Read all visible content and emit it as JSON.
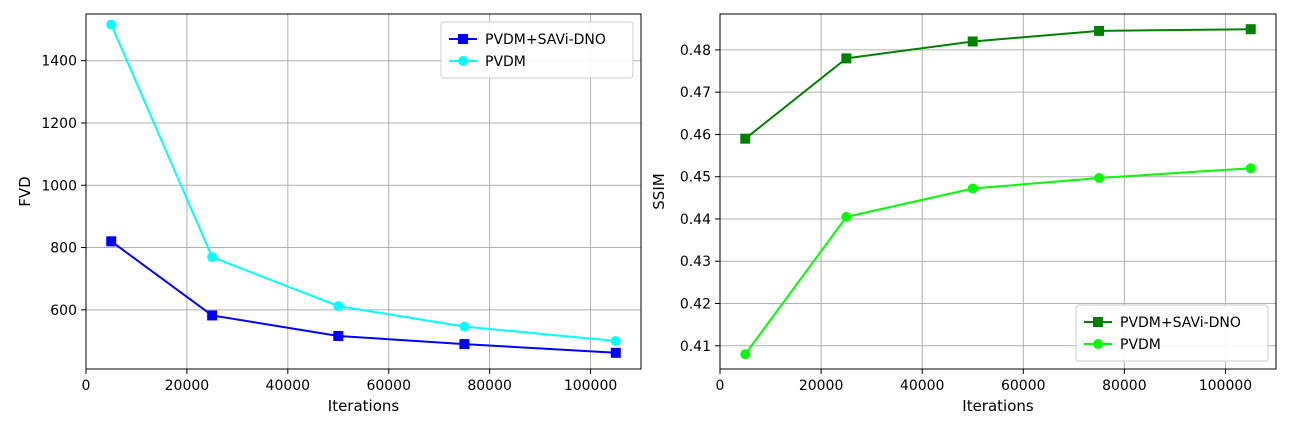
{
  "chart_data": [
    {
      "type": "line",
      "xlabel": "Iterations",
      "ylabel": "FVD",
      "xlim": [
        0,
        110000
      ],
      "ylim": [
        410,
        1550
      ],
      "x_ticks": [
        0,
        20000,
        40000,
        60000,
        80000,
        100000
      ],
      "y_ticks": [
        600,
        800,
        1000,
        1200,
        1400
      ],
      "grid": true,
      "legend_position": "top-right",
      "series": [
        {
          "name": "PVDM+SAVi-DNO",
          "color": "#0000ff",
          "marker": "square",
          "x": [
            5000,
            25000,
            50000,
            75000,
            105000
          ],
          "y": [
            820,
            582,
            516,
            490,
            462
          ]
        },
        {
          "name": "PVDM",
          "color": "#00ffff",
          "marker": "circle",
          "x": [
            5000,
            25000,
            50000,
            75000,
            105000
          ],
          "y": [
            1516,
            769,
            612,
            546,
            500
          ]
        }
      ]
    },
    {
      "type": "line",
      "xlabel": "Iterations",
      "ylabel": "SSIM",
      "xlim": [
        0,
        110000
      ],
      "ylim": [
        0.4045,
        0.4885
      ],
      "x_ticks": [
        0,
        20000,
        40000,
        60000,
        80000,
        100000
      ],
      "y_ticks": [
        0.41,
        0.42,
        0.43,
        0.44,
        0.45,
        0.46,
        0.47,
        0.48
      ],
      "grid": true,
      "legend_position": "bottom-right",
      "series": [
        {
          "name": "PVDM+SAVi-DNO",
          "color": "#008000",
          "marker": "square",
          "x": [
            5000,
            25000,
            50000,
            75000,
            105000
          ],
          "y": [
            0.459,
            0.478,
            0.482,
            0.4845,
            0.4849
          ]
        },
        {
          "name": "PVDM",
          "color": "#00ff00",
          "marker": "circle",
          "x": [
            5000,
            25000,
            50000,
            75000,
            105000
          ],
          "y": [
            0.408,
            0.4405,
            0.4472,
            0.4497,
            0.452
          ]
        }
      ]
    }
  ]
}
